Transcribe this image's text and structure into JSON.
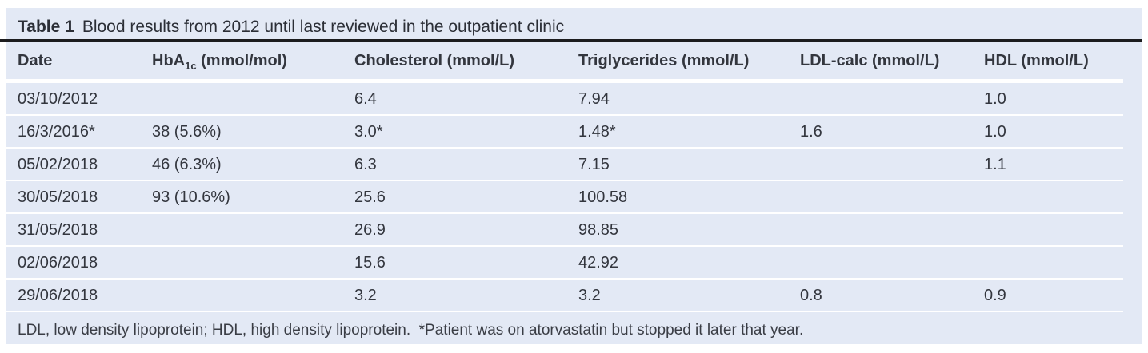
{
  "colors": {
    "panel_background": "#e3e9f5",
    "title_rule": "#1c1c1e",
    "row_separator": "#ffffff",
    "text": "#33363e"
  },
  "table": {
    "title_label": "Table 1",
    "title_text": "Blood results from 2012 until last reviewed in the outpatient clinic",
    "columns": [
      {
        "key": "date",
        "label": "Date"
      },
      {
        "key": "hba1c",
        "prefix": "HbA",
        "subscript": "1c",
        "suffix": "(mmol/mol)"
      },
      {
        "key": "cholesterol",
        "label": "Cholesterol (mmol/L)"
      },
      {
        "key": "triglycerides",
        "label": "Triglycerides (mmol/L)"
      },
      {
        "key": "ldl-calc",
        "label": "LDL-calc (mmol/L)"
      },
      {
        "key": "hdl",
        "label": "HDL (mmol/L)"
      }
    ],
    "rows": [
      [
        "03/10/2012",
        "",
        "6.4",
        "7.94",
        "",
        "1.0"
      ],
      [
        "16/3/2016*",
        "38 (5.6%)",
        "3.0*",
        "1.48*",
        "1.6",
        "1.0"
      ],
      [
        "05/02/2018",
        "46 (6.3%)",
        "6.3",
        "7.15",
        "",
        "1.1"
      ],
      [
        "30/05/2018",
        "93 (10.6%)",
        "25.6",
        "100.58",
        "",
        ""
      ],
      [
        "31/05/2018",
        "",
        "26.9",
        "98.85",
        "",
        ""
      ],
      [
        "02/06/2018",
        "",
        "15.6",
        "42.92",
        "",
        ""
      ],
      [
        "29/06/2018",
        "",
        "3.2",
        "3.2",
        "0.8",
        "0.9"
      ]
    ],
    "footnote": "LDL, low density lipoprotein; HDL, high density lipoprotein.  *Patient was on atorvastatin but stopped it later that year."
  }
}
